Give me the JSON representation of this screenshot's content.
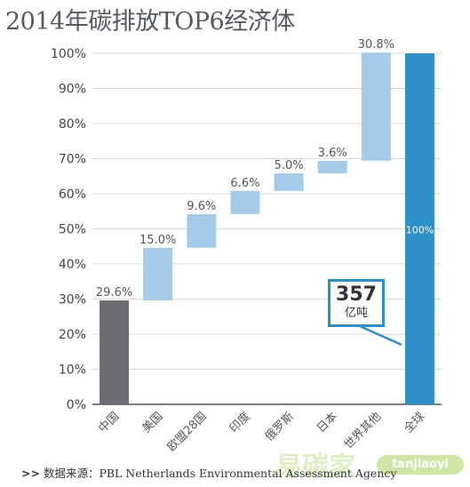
{
  "title": "2014年碳排放TOP6经济体",
  "source": {
    "prefix": ">>",
    "text": "数据来源：PBL Netherlands Environmental Assessment Agency"
  },
  "watermark": {
    "text": "易碳家",
    "badge": "tanjiaoyi"
  },
  "callout": {
    "value": "357",
    "unit": "亿吨"
  },
  "colors": {
    "china": "#6c6d70",
    "waterfall": "#a5cbea",
    "total": "#2e8fc6",
    "grid": "#d9d9d9",
    "axis": "#333333"
  },
  "chart_data": {
    "type": "bar",
    "subtype": "waterfall",
    "ylim": [
      0,
      100
    ],
    "yticks": [
      "0%",
      "10%",
      "20%",
      "30%",
      "40%",
      "50%",
      "60%",
      "70%",
      "80%",
      "90%",
      "100%"
    ],
    "categories": [
      "中国",
      "美国",
      "欧盟28国",
      "印度",
      "俄罗斯",
      "日本",
      "世界其他",
      "全球"
    ],
    "values": [
      29.6,
      15.0,
      9.6,
      6.6,
      5.0,
      3.6,
      30.8,
      100
    ],
    "labels": [
      "29.6%",
      "15.0%",
      "9.6%",
      "6.6%",
      "5.0%",
      "3.6%",
      "30.8%",
      "100%"
    ],
    "grid": true
  }
}
